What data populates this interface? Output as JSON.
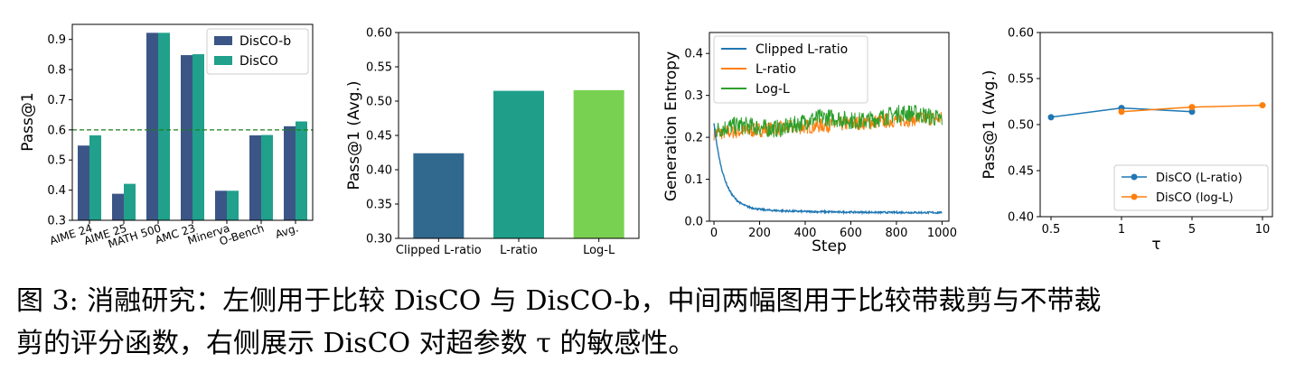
{
  "colors": {
    "disco_b": "#3b5686",
    "disco": "#21a08b",
    "clipped": "#31688e",
    "lratio": "#1f9e89",
    "logl": "#79d151",
    "line_blue": "#1f77b4",
    "line_orange": "#ff7f0e",
    "line_green": "#2ca02c",
    "ref_line": "#1a7f1a"
  },
  "chart_data": [
    {
      "type": "bar",
      "ylabel": "Pass@1",
      "ylim": [
        0.3,
        0.95
      ],
      "yticks": [
        "0.3",
        "0.4",
        "0.5",
        "0.6",
        "0.7",
        "0.8",
        "0.9"
      ],
      "categories": [
        "AIME 24",
        "AIME 25",
        "MATH 500",
        "AMC 23",
        "Minerva",
        "O-Bench",
        "Avg."
      ],
      "series": [
        {
          "name": "DisCO-b",
          "values": [
            0.548,
            0.388,
            0.922,
            0.848,
            0.398,
            0.582,
            0.612
          ]
        },
        {
          "name": "DisCO",
          "values": [
            0.582,
            0.421,
            0.922,
            0.851,
            0.398,
            0.583,
            0.628
          ]
        }
      ],
      "reference_line": 0.6,
      "legend": "top-right"
    },
    {
      "type": "bar",
      "ylabel": "Pass@1 (Avg.)",
      "ylim": [
        0.3,
        0.6
      ],
      "yticks": [
        "0.30",
        "0.35",
        "0.40",
        "0.45",
        "0.50",
        "0.55",
        "0.60"
      ],
      "categories": [
        "Clipped L-ratio",
        "L-ratio",
        "Log-L"
      ],
      "values": [
        0.424,
        0.515,
        0.516
      ]
    },
    {
      "type": "line",
      "xlabel": "Step",
      "ylabel": "Generation Entropy",
      "xlim": [
        -20,
        1030
      ],
      "ylim": [
        0,
        0.45
      ],
      "xticks": [
        "0",
        "200",
        "400",
        "600",
        "800",
        "1000"
      ],
      "yticks": [
        "0.0",
        "0.1",
        "0.2",
        "0.3",
        "0.4"
      ],
      "series": [
        {
          "name": "Clipped L-ratio",
          "start": 0.22,
          "decay_to": 0.03,
          "end": 0.02
        },
        {
          "name": "L-ratio",
          "start": 0.21,
          "mean_end": 0.245,
          "noise": 0.02
        },
        {
          "name": "Log-L",
          "start": 0.215,
          "mean_end": 0.25,
          "noise": 0.024
        }
      ],
      "legend": "top-left"
    },
    {
      "type": "line",
      "xlabel": "τ",
      "ylabel": "Pass@1 (Avg.)",
      "ylim": [
        0.4,
        0.6
      ],
      "xticks": [
        "0.5",
        "1",
        "5",
        "10"
      ],
      "yticks": [
        "0.40",
        "0.45",
        "0.50",
        "0.55",
        "0.60"
      ],
      "series": [
        {
          "name": "DisCO (L-ratio)",
          "x": [
            "0.5",
            "1",
            "5"
          ],
          "values": [
            0.508,
            0.518,
            0.514
          ]
        },
        {
          "name": "DisCO (log-L)",
          "x": [
            "1",
            "5",
            "10"
          ],
          "values": [
            0.514,
            0.519,
            0.521
          ]
        }
      ],
      "legend": "bottom-right"
    }
  ],
  "caption": {
    "line1": "图 3: 消融研究：左侧用于比较 DisCO 与 DisCO-b，中间两幅图用于比较带裁剪与不带裁",
    "line2": "剪的评分函数，右侧展示 DisCO 对超参数 τ 的敏感性。"
  }
}
